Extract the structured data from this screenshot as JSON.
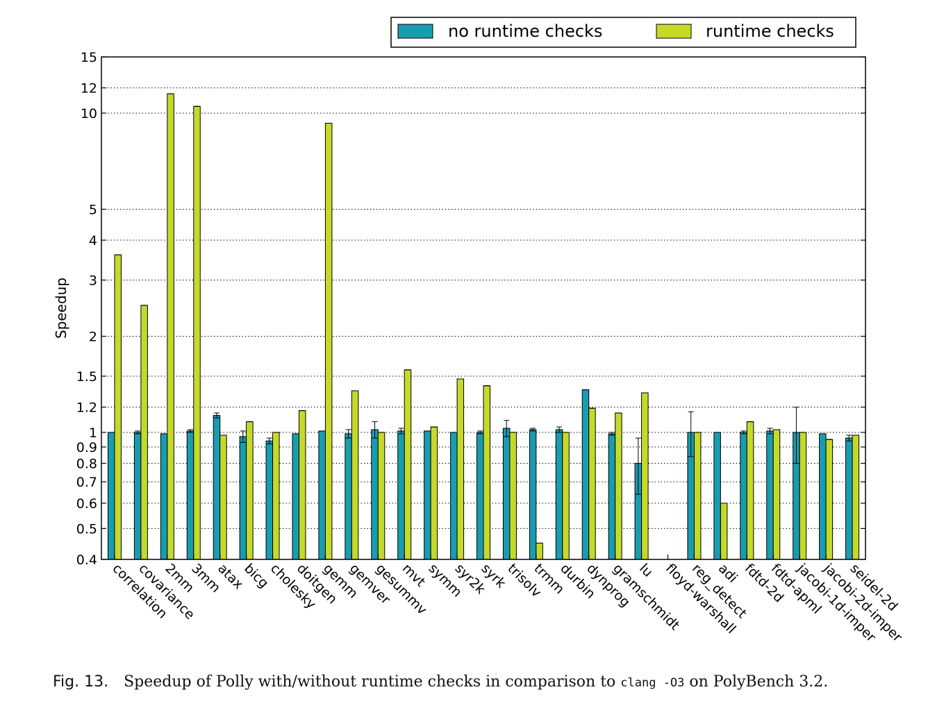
{
  "chart_data": {
    "type": "bar",
    "ylabel": "Speedup",
    "yscale": "log",
    "ylim": [
      0.4,
      15
    ],
    "yticks": [
      0.4,
      0.5,
      0.6,
      0.7,
      0.8,
      0.9,
      1,
      1.2,
      1.5,
      2,
      3,
      4,
      5,
      10,
      12,
      15
    ],
    "ytick_labels": [
      "0.4",
      "0.5",
      "0.6",
      "0.7",
      "0.8",
      "0.9",
      "1",
      "1.2",
      "1.5",
      "2",
      "3",
      "4",
      "5",
      "10",
      "12",
      "15"
    ],
    "grid": "horizontal dotted",
    "legend_position": "top-right, above plot",
    "categories": [
      "correlation",
      "covariance",
      "2mm",
      "3mm",
      "atax",
      "bicg",
      "cholesky",
      "doitgen",
      "gemm",
      "gemver",
      "gesummv",
      "mvt",
      "symm",
      "syr2k",
      "syrk",
      "trisolv",
      "trmm",
      "durbin",
      "dynprog",
      "gramschmidt",
      "lu",
      "floyd-warshall",
      "reg_detect",
      "adi",
      "fdtd-2d",
      "fdtd-apml",
      "jacobi-1d-imper",
      "jacobi-2d-imper",
      "seidel-2d"
    ],
    "series": [
      {
        "name": "no runtime checks",
        "color": "#1a9cb0",
        "values": [
          1.0,
          1.0,
          0.99,
          1.01,
          1.13,
          0.97,
          0.94,
          0.99,
          1.01,
          0.99,
          1.02,
          1.01,
          1.01,
          1.0,
          1.0,
          1.03,
          1.02,
          1.02,
          1.36,
          0.99,
          0.8,
          null,
          1.0,
          1.0,
          1.0,
          1.01,
          1.0,
          0.99,
          0.96
        ],
        "errors": [
          0,
          0.01,
          0,
          0.01,
          0.02,
          0.04,
          0.02,
          0,
          0,
          0.03,
          0.06,
          0.02,
          0,
          0,
          0.01,
          0.06,
          0.01,
          0.02,
          0,
          0.01,
          0.16,
          null,
          0.16,
          0,
          0.01,
          0.02,
          0.2,
          0,
          0.02
        ]
      },
      {
        "name": "runtime checks",
        "color": "#c5d92b",
        "values": [
          3.6,
          2.5,
          11.5,
          10.5,
          0.98,
          1.08,
          1.0,
          1.17,
          9.3,
          1.35,
          1.0,
          1.57,
          1.04,
          1.47,
          1.4,
          1.0,
          0.45,
          1.0,
          1.19,
          1.15,
          1.33,
          null,
          1.0,
          0.6,
          1.08,
          1.02,
          1.0,
          0.95,
          0.98
        ]
      }
    ]
  },
  "legend": {
    "items": [
      "no runtime checks",
      "runtime checks"
    ]
  },
  "caption": {
    "fig": "Fig. 13.",
    "text_before": "Speedup of Polly with/without runtime checks in comparison to ",
    "code": "clang -O3",
    "text_after": " on PolyBench 3.2."
  }
}
